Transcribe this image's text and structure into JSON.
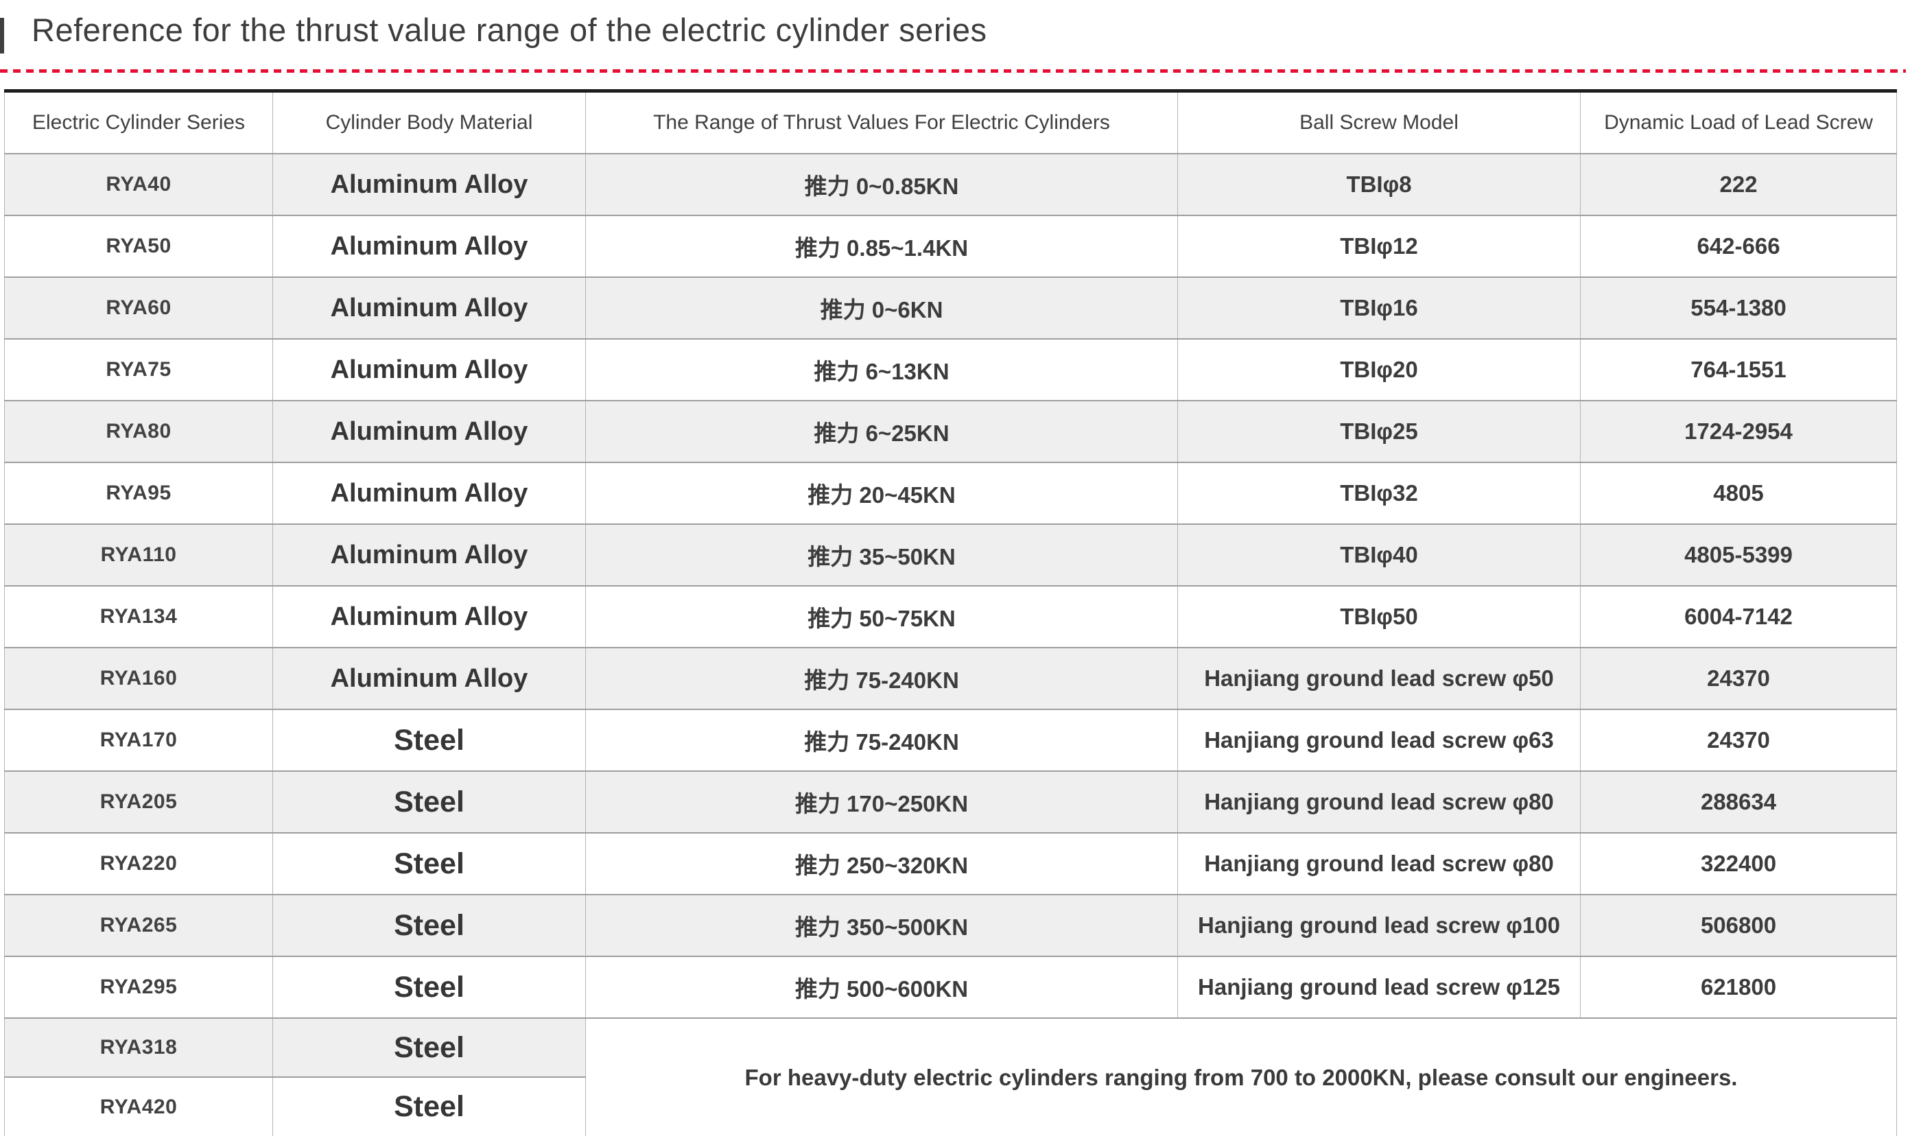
{
  "page": {
    "title": "Reference for the thrust value range of the electric cylinder series"
  },
  "colors": {
    "accent_red": "#e60f33",
    "alt_row_gray": "#f0efef",
    "top_border_dark": "#1d1d1d",
    "grid_gray": "#9e9e9e",
    "text_dark": "#3d3d3d"
  },
  "table": {
    "headers": [
      "Electric Cylinder Series",
      "Cylinder Body Material",
      "The Range of Thrust Values For Electric Cylinders",
      "Ball Screw Model",
      "Dynamic Load of Lead Screw"
    ],
    "rows": [
      {
        "series": "RYA40",
        "material": "Aluminum Alloy",
        "thrust": "推力 0~0.85KN",
        "ball_screw": "TBIφ8",
        "dynamic_load": "222"
      },
      {
        "series": "RYA50",
        "material": "Aluminum Alloy",
        "thrust": "推力 0.85~1.4KN",
        "ball_screw": "TBIφ12",
        "dynamic_load": "642-666"
      },
      {
        "series": "RYA60",
        "material": "Aluminum Alloy",
        "thrust": "推力 0~6KN",
        "ball_screw": "TBIφ16",
        "dynamic_load": "554-1380"
      },
      {
        "series": "RYA75",
        "material": "Aluminum Alloy",
        "thrust": "推力 6~13KN",
        "ball_screw": "TBIφ20",
        "dynamic_load": "764-1551"
      },
      {
        "series": "RYA80",
        "material": "Aluminum Alloy",
        "thrust": "推力 6~25KN",
        "ball_screw": "TBIφ25",
        "dynamic_load": "1724-2954"
      },
      {
        "series": "RYA95",
        "material": "Aluminum Alloy",
        "thrust": "推力 20~45KN",
        "ball_screw": "TBIφ32",
        "dynamic_load": "4805"
      },
      {
        "series": "RYA110",
        "material": "Aluminum Alloy",
        "thrust": "推力 35~50KN",
        "ball_screw": "TBIφ40",
        "dynamic_load": "4805-5399"
      },
      {
        "series": "RYA134",
        "material": "Aluminum Alloy",
        "thrust": "推力 50~75KN",
        "ball_screw": "TBIφ50",
        "dynamic_load": "6004-7142"
      },
      {
        "series": "RYA160",
        "material": "Aluminum Alloy",
        "thrust": "推力 75-240KN",
        "ball_screw": "Hanjiang ground lead screw φ50",
        "dynamic_load": "24370"
      },
      {
        "series": "RYA170",
        "material": "Steel",
        "thrust": "推力 75-240KN",
        "ball_screw": "Hanjiang ground lead screw φ63",
        "dynamic_load": "24370"
      },
      {
        "series": "RYA205",
        "material": "Steel",
        "thrust": "推力 170~250KN",
        "ball_screw": "Hanjiang ground lead screw φ80",
        "dynamic_load": "288634"
      },
      {
        "series": "RYA220",
        "material": "Steel",
        "thrust": "推力 250~320KN",
        "ball_screw": "Hanjiang ground lead screw φ80",
        "dynamic_load": "322400"
      },
      {
        "series": "RYA265",
        "material": "Steel",
        "thrust": "推力 350~500KN",
        "ball_screw": "Hanjiang ground lead screw φ100",
        "dynamic_load": "506800"
      },
      {
        "series": "RYA295",
        "material": "Steel",
        "thrust": "推力 500~600KN",
        "ball_screw": "Hanjiang ground lead screw φ125",
        "dynamic_load": "621800"
      },
      {
        "series": "RYA318",
        "material": "Steel"
      },
      {
        "series": "RYA420",
        "material": "Steel"
      }
    ],
    "note": "For heavy-duty electric cylinders ranging from 700 to 2000KN, please consult our engineers."
  }
}
